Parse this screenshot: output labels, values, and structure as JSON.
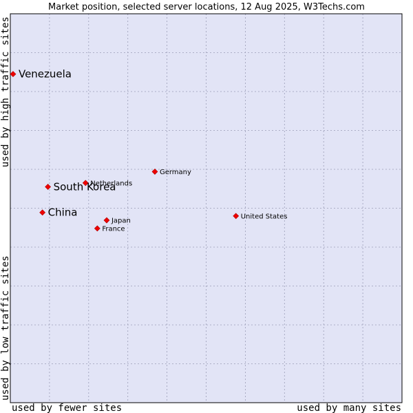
{
  "chart_data": {
    "type": "scatter",
    "title": "Market position, selected server locations, 12 Aug 2025, W3Techs.com",
    "xlabel_left": "used by fewer sites",
    "xlabel_right": "used by many sites",
    "ylabel_top": "used by high traffic sites",
    "ylabel_bottom": "used by low traffic sites",
    "xlim": [
      0,
      100
    ],
    "ylim": [
      0,
      100
    ],
    "grid": true,
    "points": [
      {
        "label": "Venezuela",
        "x": 0.7,
        "y": 84.5,
        "size": "large"
      },
      {
        "label": "Germany",
        "x": 36.9,
        "y": 59.4,
        "size": "small"
      },
      {
        "label": "Netherlands",
        "x": 19.2,
        "y": 56.5,
        "size": "small"
      },
      {
        "label": "South Korea",
        "x": 9.6,
        "y": 55.5,
        "size": "large"
      },
      {
        "label": "China",
        "x": 8.2,
        "y": 48.9,
        "size": "large"
      },
      {
        "label": "United States",
        "x": 57.6,
        "y": 48.0,
        "size": "small"
      },
      {
        "label": "Japan",
        "x": 24.6,
        "y": 46.9,
        "size": "small"
      },
      {
        "label": "France",
        "x": 22.2,
        "y": 44.8,
        "size": "small"
      }
    ]
  },
  "colors": {
    "plot_background": "#e2e4f6",
    "grid": "#9a9cb6",
    "marker": "#ee0000",
    "marker_outline": "#b00000"
  }
}
